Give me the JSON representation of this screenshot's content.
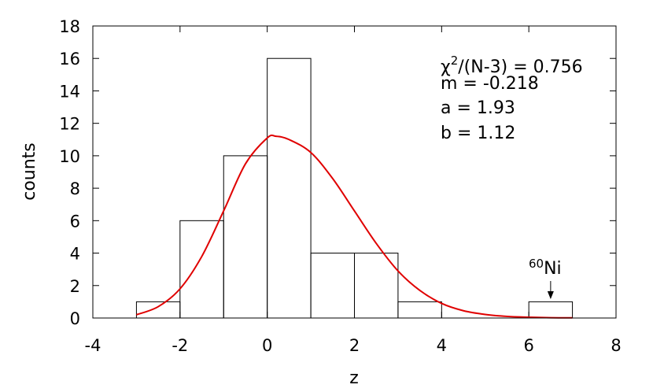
{
  "chart_data": {
    "type": "bar",
    "xlabel": "z",
    "ylabel": "counts",
    "xlim": [
      -4,
      8
    ],
    "ylim": [
      0,
      18
    ],
    "x_ticks": [
      "-4",
      "-2",
      "0",
      "2",
      "4",
      "6",
      "8"
    ],
    "y_ticks": [
      "0",
      "2",
      "4",
      "6",
      "8",
      "10",
      "12",
      "14",
      "16",
      "18"
    ],
    "bins": [
      {
        "x0": -3,
        "x1": -2,
        "count": 1
      },
      {
        "x0": -2,
        "x1": -1,
        "count": 6
      },
      {
        "x0": -1,
        "x1": 0,
        "count": 10
      },
      {
        "x0": 0,
        "x1": 1,
        "count": 16
      },
      {
        "x0": 1,
        "x1": 2,
        "count": 4
      },
      {
        "x0": 2,
        "x1": 3,
        "count": 4
      },
      {
        "x0": 3,
        "x1": 4,
        "count": 1
      },
      {
        "x0": 6,
        "x1": 7,
        "count": 1
      }
    ],
    "fit_curve": {
      "color": "#e00000",
      "x_range": [
        -3,
        7
      ],
      "peak": {
        "x": 0.2,
        "y": 11.2
      },
      "points": [
        [
          -3.0,
          0.2
        ],
        [
          -2.5,
          0.7
        ],
        [
          -2.0,
          1.8
        ],
        [
          -1.5,
          3.8
        ],
        [
          -1.0,
          6.6
        ],
        [
          -0.5,
          9.5
        ],
        [
          0.0,
          11.1
        ],
        [
          0.2,
          11.2
        ],
        [
          0.5,
          11.0
        ],
        [
          1.0,
          10.2
        ],
        [
          1.5,
          8.6
        ],
        [
          2.0,
          6.6
        ],
        [
          2.5,
          4.6
        ],
        [
          3.0,
          2.9
        ],
        [
          3.5,
          1.7
        ],
        [
          4.0,
          0.9
        ],
        [
          4.5,
          0.45
        ],
        [
          5.0,
          0.22
        ],
        [
          5.5,
          0.1
        ],
        [
          6.0,
          0.05
        ],
        [
          6.5,
          0.02
        ],
        [
          7.0,
          0.01
        ]
      ]
    },
    "annotations": {
      "chi2_prefix": "χ",
      "chi2_sup": "2",
      "chi2_rest": "/(N-3) = 0.756",
      "m_line": "m = -0.218",
      "a_line": "a = 1.93",
      "b_line": "b = 1.12",
      "marker_sup": "60",
      "marker_label": "Ni",
      "marker_x": 6.5
    }
  }
}
